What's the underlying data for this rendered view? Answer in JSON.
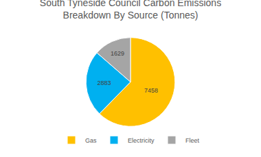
{
  "chart_data": {
    "type": "pie",
    "title": "South Tyneside Council Carbon Emissions Breakdown By Source (Tonnes)",
    "categories": [
      "Gas",
      "Electricity",
      "Fleet"
    ],
    "values": [
      7458,
      2883,
      1629
    ],
    "colors": [
      "#FFC000",
      "#00B0F0",
      "#A5A5A5"
    ],
    "data_labels": true,
    "legend": "bottom"
  }
}
